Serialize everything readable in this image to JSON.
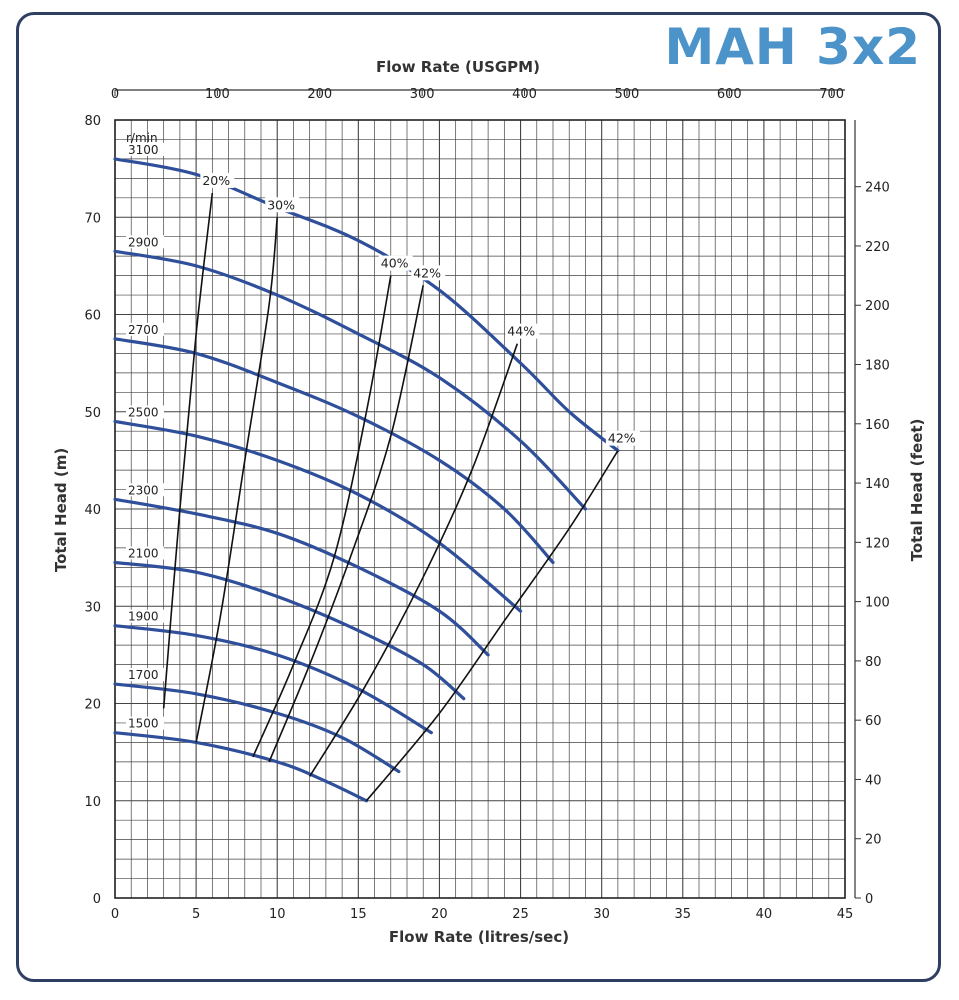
{
  "brand": "MAH 3x2",
  "chart_data": {
    "type": "line",
    "title": "MAH 3x2",
    "xlabel": "Flow Rate (litres/sec)",
    "x2label": "Flow Rate (USGPM)",
    "ylabel": "Total Head (m)",
    "y2label": "Total Head (feet)",
    "xlim": [
      0,
      45
    ],
    "ylim": [
      0,
      80
    ],
    "x2lim": [
      0,
      713
    ],
    "y2lim": [
      0,
      262.5
    ],
    "x_ticks": [
      0,
      5,
      10,
      15,
      20,
      25,
      30,
      35,
      40,
      45
    ],
    "y_ticks": [
      0,
      10,
      20,
      30,
      40,
      50,
      60,
      70,
      80
    ],
    "x2_ticks": [
      0,
      100,
      200,
      300,
      400,
      500,
      600,
      700
    ],
    "y2_ticks": [
      0,
      20,
      40,
      60,
      80,
      100,
      120,
      140,
      160,
      180,
      200,
      220,
      240
    ],
    "grid": true,
    "speed_unit_label": "r/min",
    "series": [
      {
        "name": "3100",
        "points": [
          [
            0,
            76.0
          ],
          [
            5,
            74.4
          ],
          [
            10,
            71.0
          ],
          [
            15,
            67.6
          ],
          [
            20,
            62.5
          ],
          [
            25,
            55.0
          ],
          [
            28,
            50.0
          ],
          [
            31,
            46.0
          ]
        ]
      },
      {
        "name": "2900",
        "points": [
          [
            0,
            66.5
          ],
          [
            5,
            65.0
          ],
          [
            10,
            62.0
          ],
          [
            15,
            58.0
          ],
          [
            20,
            53.5
          ],
          [
            25,
            47.0
          ],
          [
            29,
            40.0
          ]
        ]
      },
      {
        "name": "2700",
        "points": [
          [
            0,
            57.5
          ],
          [
            5,
            56.0
          ],
          [
            10,
            53.0
          ],
          [
            15,
            49.5
          ],
          [
            20,
            45.0
          ],
          [
            24,
            40.0
          ],
          [
            27,
            34.5
          ]
        ]
      },
      {
        "name": "2500",
        "points": [
          [
            0,
            49.0
          ],
          [
            5,
            47.5
          ],
          [
            10,
            45.0
          ],
          [
            15,
            41.5
          ],
          [
            20,
            36.5
          ],
          [
            25,
            29.5
          ]
        ]
      },
      {
        "name": "2300",
        "points": [
          [
            0,
            41.0
          ],
          [
            5,
            39.5
          ],
          [
            10,
            37.5
          ],
          [
            15,
            34.0
          ],
          [
            20,
            29.5
          ],
          [
            23,
            25.0
          ]
        ]
      },
      {
        "name": "2100",
        "points": [
          [
            0,
            34.5
          ],
          [
            5,
            33.5
          ],
          [
            10,
            31.0
          ],
          [
            15,
            27.5
          ],
          [
            19,
            24.0
          ],
          [
            21.5,
            20.5
          ]
        ]
      },
      {
        "name": "1900",
        "points": [
          [
            0,
            28.0
          ],
          [
            5,
            27.0
          ],
          [
            10,
            25.0
          ],
          [
            15,
            21.5
          ],
          [
            19.5,
            17.0
          ]
        ]
      },
      {
        "name": "1700",
        "points": [
          [
            0,
            22.0
          ],
          [
            5,
            21.0
          ],
          [
            10,
            19.0
          ],
          [
            14,
            16.5
          ],
          [
            17.5,
            13.0
          ]
        ]
      },
      {
        "name": "1500",
        "points": [
          [
            0,
            17.0
          ],
          [
            5,
            16.0
          ],
          [
            10,
            14.0
          ],
          [
            13,
            12.0
          ],
          [
            15.5,
            10.0
          ]
        ]
      }
    ],
    "efficiency_lines": [
      {
        "label": "20%",
        "points": [
          [
            3.0,
            19.5
          ],
          [
            4.0,
            40.0
          ],
          [
            5.0,
            58.0
          ],
          [
            6.0,
            72.5
          ]
        ]
      },
      {
        "label": "30%",
        "points": [
          [
            5.0,
            16.0
          ],
          [
            6.5,
            29.0
          ],
          [
            8.0,
            45.0
          ],
          [
            9.5,
            61.0
          ],
          [
            10.0,
            70.0
          ]
        ]
      },
      {
        "label": "40%",
        "points": [
          [
            8.5,
            14.5
          ],
          [
            11.0,
            24.0
          ],
          [
            13.5,
            35.0
          ],
          [
            15.5,
            50.0
          ],
          [
            17.0,
            64.0
          ]
        ]
      },
      {
        "label": "42%",
        "points": [
          [
            9.5,
            14.0
          ],
          [
            12.0,
            24.0
          ],
          [
            14.5,
            35.0
          ],
          [
            17.0,
            47.5
          ],
          [
            19.0,
            63.0
          ]
        ]
      },
      {
        "label": "44%",
        "points": [
          [
            12.0,
            12.5
          ],
          [
            15.5,
            22.0
          ],
          [
            19.0,
            33.0
          ],
          [
            22.0,
            44.0
          ],
          [
            24.8,
            57.0
          ]
        ]
      },
      {
        "label": "42%",
        "points": [
          [
            15.5,
            10.0
          ],
          [
            20.0,
            19.0
          ],
          [
            24.0,
            28.5
          ],
          [
            28.0,
            38.0
          ],
          [
            31.0,
            46.0
          ]
        ]
      }
    ]
  }
}
